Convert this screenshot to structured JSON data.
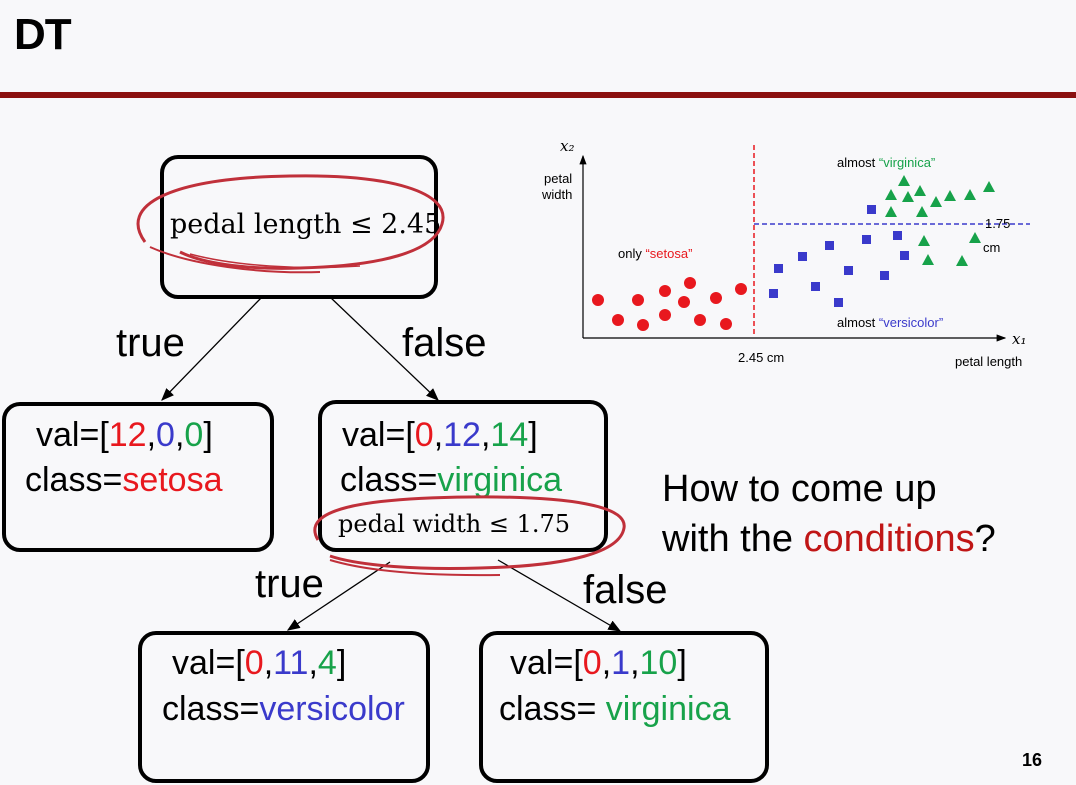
{
  "slide": {
    "title": "DT",
    "page_number": "16"
  },
  "root": {
    "condition": "pedal length ≤ 2.45"
  },
  "edges": {
    "root_true": "true",
    "root_false": "false",
    "mid_true": "true",
    "mid_false": "false"
  },
  "left_leaf": {
    "val_prefix": "val=[",
    "v1": "12",
    "v2": "0",
    "v3": "0",
    "val_suffix": "]",
    "class_prefix": "class=",
    "class_name": "setosa"
  },
  "mid_node": {
    "val_prefix": "val=[",
    "v1": "0",
    "v2": "12",
    "v3": "14",
    "val_suffix": "]",
    "class_prefix": "class=",
    "class_name": "virginica",
    "condition": "pedal width ≤ 1.75"
  },
  "leaf_versicolor": {
    "val_prefix": "val=[",
    "v1": "0",
    "v2": "11",
    "v3": "4",
    "val_suffix": "]",
    "class_prefix": "class=",
    "class_name": "versicolor"
  },
  "leaf_virginica": {
    "val_prefix": "val=[",
    "v1": "0",
    "v2": "1",
    "v3": "10",
    "val_suffix": "]",
    "class_prefix": "class= ",
    "class_name": "virginica"
  },
  "question": {
    "line1": "How to come up",
    "line2_prefix": "with the ",
    "line2_highlight": "conditions",
    "line2_suffix": "?"
  },
  "plot": {
    "x_axis_symbol": "x₁",
    "y_axis_symbol": "x₂",
    "xlabel": "petal length",
    "ylabel_line1": "petal",
    "ylabel_line2": "width",
    "x_threshold_label": "2.45 cm",
    "y_threshold_label_1": "1.75",
    "y_threshold_label_2": "cm",
    "setosa_prefix": "only ",
    "setosa_label": "“setosa”",
    "virginica_prefix": "almost ",
    "virginica_label": "“virginica”",
    "versicolor_prefix": "almost ",
    "versicolor_label": "“versicolor”"
  },
  "colors": {
    "accent_rule": "#8b1010",
    "setosa": "#e8181e",
    "versicolor": "#3a3acb",
    "virginica": "#17a24a",
    "highlight": "#c01616",
    "threshold_x": "#e8181e",
    "threshold_y": "#3a3acb"
  }
}
